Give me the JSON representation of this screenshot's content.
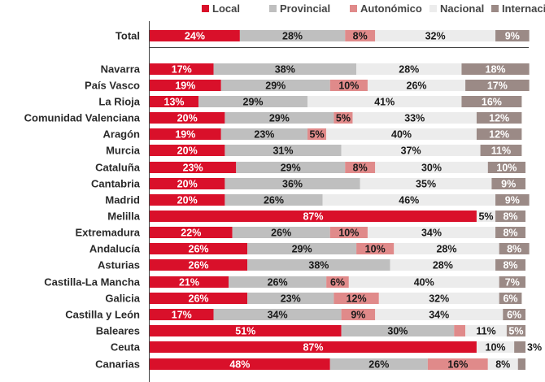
{
  "chart_data": {
    "type": "bar",
    "stacked": true,
    "orientation": "horizontal",
    "unit": "%",
    "legend_position": "top-right",
    "categories": [
      "Total",
      "Navarra",
      "País Vasco",
      "La Rioja",
      "Comunidad Valenciana",
      "Aragón",
      "Murcia",
      "Cataluña",
      "Cantabria",
      "Madrid",
      "Melilla",
      "Extremadura",
      "Andalucía",
      "Asturias",
      "Castilla-La Mancha",
      "Galicia",
      "Castilla y León",
      "Baleares",
      "Ceuta",
      "Canarias"
    ],
    "series": [
      {
        "name": "Local",
        "color": "#d9102a",
        "values": [
          24,
          17,
          19,
          13,
          20,
          19,
          20,
          23,
          20,
          20,
          87,
          22,
          26,
          26,
          21,
          26,
          17,
          51,
          87,
          48
        ]
      },
      {
        "name": "Provincial",
        "color": "#bfbfbf",
        "values": [
          28,
          38,
          29,
          29,
          29,
          23,
          31,
          29,
          36,
          26,
          null,
          26,
          29,
          38,
          26,
          23,
          34,
          30,
          null,
          26
        ]
      },
      {
        "name": "Autonómico",
        "color": "#e08a8a",
        "values": [
          8,
          null,
          10,
          null,
          5,
          5,
          null,
          8,
          null,
          null,
          null,
          10,
          10,
          null,
          6,
          12,
          9,
          3,
          null,
          16
        ]
      },
      {
        "name": "Nacional",
        "color": "#ececec",
        "values": [
          32,
          28,
          26,
          41,
          33,
          40,
          37,
          30,
          35,
          46,
          5,
          34,
          28,
          28,
          40,
          32,
          34,
          11,
          10,
          8
        ]
      },
      {
        "name": "Internacional",
        "color": "#9b8a86",
        "values": [
          9,
          18,
          17,
          16,
          12,
          12,
          11,
          10,
          9,
          9,
          8,
          8,
          8,
          8,
          7,
          6,
          6,
          5,
          3,
          2
        ]
      }
    ],
    "labels": [
      [
        "24%",
        "28%",
        "8%",
        "32%",
        "9%"
      ],
      [
        "17%",
        "38%",
        "",
        "28%",
        "18%"
      ],
      [
        "19%",
        "29%",
        "10%",
        "26%",
        "17%"
      ],
      [
        "13%",
        "29%",
        "",
        "41%",
        "16%"
      ],
      [
        "20%",
        "29%",
        "5%",
        "33%",
        "12%"
      ],
      [
        "19%",
        "23%",
        "5%",
        "40%",
        "12%"
      ],
      [
        "20%",
        "31%",
        "",
        "37%",
        "11%"
      ],
      [
        "23%",
        "29%",
        "8%",
        "30%",
        "10%"
      ],
      [
        "20%",
        "36%",
        "",
        "35%",
        "9%"
      ],
      [
        "20%",
        "26%",
        "",
        "46%",
        "9%"
      ],
      [
        "87%",
        "",
        "",
        "5%",
        "8%"
      ],
      [
        "22%",
        "26%",
        "10%",
        "34%",
        "8%"
      ],
      [
        "26%",
        "29%",
        "10%",
        "28%",
        "8%"
      ],
      [
        "26%",
        "38%",
        "",
        "28%",
        "8%"
      ],
      [
        "21%",
        "26%",
        "6%",
        "40%",
        "7%"
      ],
      [
        "26%",
        "23%",
        "12%",
        "32%",
        "6%"
      ],
      [
        "17%",
        "34%",
        "9%",
        "34%",
        "6%"
      ],
      [
        "51%",
        "30%",
        "3%",
        "11%",
        "5%"
      ],
      [
        "87%",
        "",
        "",
        "10%",
        "3%"
      ],
      [
        "48%",
        "26%",
        "16%",
        "8%",
        ""
      ]
    ]
  }
}
